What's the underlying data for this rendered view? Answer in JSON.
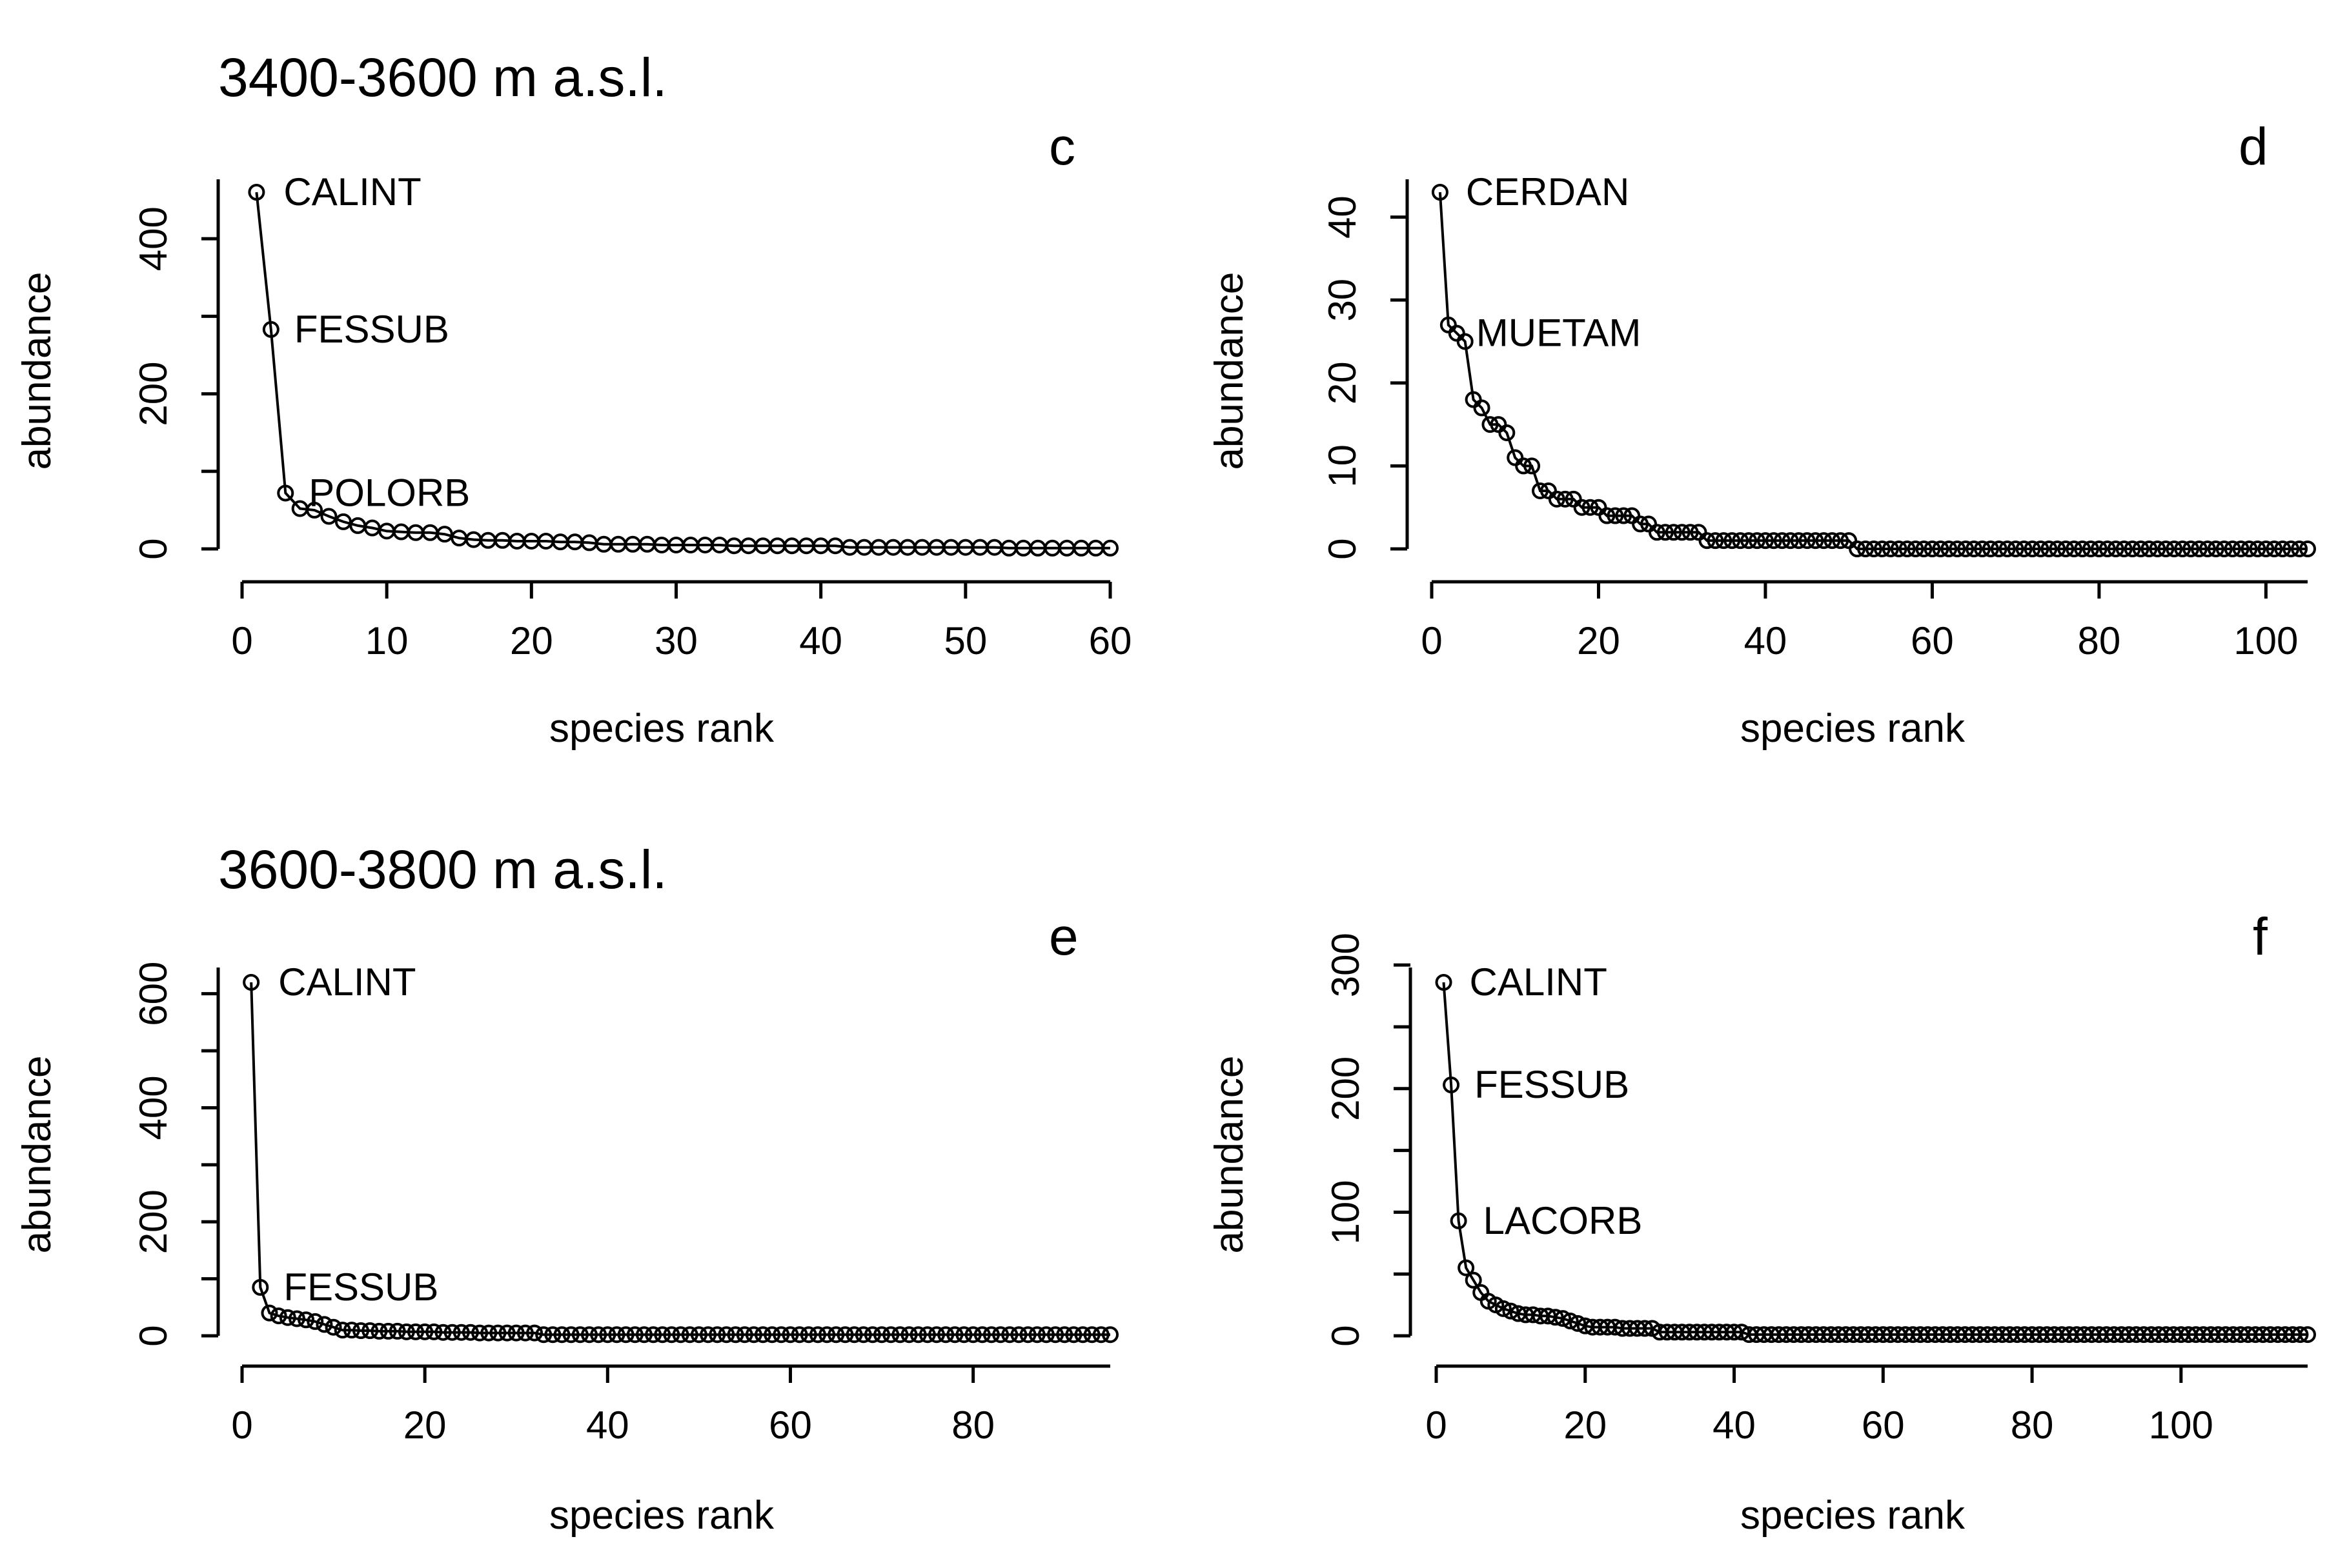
{
  "row_titles": [
    "3400-3600 m a.s.l.",
    "3600-3800 m a.s.l."
  ],
  "chart_data": [
    {
      "type": "line",
      "panel_label": "c",
      "xlabel": "species rank",
      "ylabel": "abundance",
      "xlim": [
        0,
        60
      ],
      "ylim": [
        0,
        460
      ],
      "xticks": [
        0,
        10,
        20,
        30,
        40,
        50,
        60
      ],
      "yticks": [
        0,
        200,
        400
      ],
      "minor_yticks": [
        100,
        300
      ],
      "x": [
        1,
        2,
        3,
        4,
        5,
        6,
        7,
        8,
        9,
        10,
        11,
        12,
        13,
        14,
        15,
        16,
        17,
        18,
        19,
        20,
        21,
        22,
        23,
        24,
        25,
        26,
        27,
        28,
        29,
        30,
        31,
        32,
        33,
        34,
        35,
        36,
        37,
        38,
        39,
        40,
        41,
        42,
        43,
        44,
        45,
        46,
        47,
        48,
        49,
        50,
        51,
        52,
        53,
        54,
        55,
        56,
        57,
        58,
        59,
        60
      ],
      "values": [
        460,
        283,
        72,
        52,
        50,
        42,
        35,
        30,
        27,
        23,
        22,
        21,
        21,
        19,
        14,
        12,
        11,
        11,
        10,
        10,
        10,
        9,
        9,
        8,
        6,
        6,
        6,
        6,
        5,
        5,
        5,
        5,
        5,
        4,
        4,
        4,
        4,
        4,
        4,
        4,
        4,
        2,
        2,
        2,
        2,
        2,
        2,
        2,
        2,
        2,
        2,
        2,
        1,
        1,
        1,
        1,
        1,
        1,
        1,
        1
      ],
      "annotations": [
        {
          "text": "CALINT",
          "rank": 1
        },
        {
          "text": "FESSUB",
          "rank": 2
        },
        {
          "text": "POLORB",
          "rank": 3
        }
      ]
    },
    {
      "type": "line",
      "panel_label": "d",
      "xlabel": "species rank",
      "ylabel": "abundance",
      "xlim": [
        0,
        105
      ],
      "ylim": [
        0,
        43
      ],
      "xticks": [
        0,
        20,
        40,
        60,
        80,
        100
      ],
      "yticks": [
        0,
        10,
        20,
        30,
        40
      ],
      "x": [
        1,
        2,
        3,
        4,
        5,
        6,
        7,
        8,
        9,
        10,
        11,
        12,
        13,
        14,
        15,
        16,
        17,
        18,
        19,
        20,
        21,
        22,
        23,
        24,
        25,
        26,
        27,
        28,
        29,
        30,
        31,
        32,
        33,
        34,
        35,
        36,
        37,
        38,
        39,
        40,
        41,
        42,
        43,
        44,
        45,
        46,
        47,
        48,
        49,
        50,
        51,
        52,
        53,
        54,
        55,
        56,
        57,
        58,
        59,
        60,
        61,
        62,
        63,
        64,
        65,
        66,
        67,
        68,
        69,
        70,
        71,
        72,
        73,
        74,
        75,
        76,
        77,
        78,
        79,
        80,
        81,
        82,
        83,
        84,
        85,
        86,
        87,
        88,
        89,
        90,
        91,
        92,
        93,
        94,
        95,
        96,
        97,
        98,
        99,
        100,
        101,
        102,
        103,
        104,
        105
      ],
      "values": [
        43,
        27,
        26,
        25,
        18,
        17,
        15,
        15,
        14,
        11,
        10,
        10,
        7,
        7,
        6,
        6,
        6,
        5,
        5,
        5,
        4,
        4,
        4,
        4,
        3,
        3,
        2,
        2,
        2,
        2,
        2,
        2,
        1,
        1,
        1,
        1,
        1,
        1,
        1,
        1,
        1,
        1,
        1,
        1,
        1,
        1,
        1,
        1,
        1,
        1,
        0,
        0,
        0,
        0,
        0,
        0,
        0,
        0,
        0,
        0,
        0,
        0,
        0,
        0,
        0,
        0,
        0,
        0,
        0,
        0,
        0,
        0,
        0,
        0,
        0,
        0,
        0,
        0,
        0,
        0,
        0,
        0,
        0,
        0,
        0,
        0,
        0,
        0,
        0,
        0,
        0,
        0,
        0,
        0,
        0,
        0,
        0,
        0,
        0,
        0,
        0,
        0,
        0,
        0,
        0
      ],
      "annotations": [
        {
          "text": "CERDAN",
          "rank": 1
        },
        {
          "text": "MUETAM",
          "rank": 3
        }
      ]
    },
    {
      "type": "line",
      "panel_label": "e",
      "xlabel": "species rank",
      "ylabel": "abundance",
      "xlim": [
        0,
        95
      ],
      "ylim": [
        0,
        620
      ],
      "xticks": [
        0,
        20,
        40,
        60,
        80
      ],
      "yticks": [
        0,
        200,
        400,
        600
      ],
      "minor_yticks": [
        100,
        300,
        500
      ],
      "x": [
        1,
        2,
        3,
        4,
        5,
        6,
        7,
        8,
        9,
        10,
        11,
        12,
        13,
        14,
        15,
        16,
        17,
        18,
        19,
        20,
        21,
        22,
        23,
        24,
        25,
        26,
        27,
        28,
        29,
        30,
        31,
        32,
        33,
        34,
        35,
        36,
        37,
        38,
        39,
        40,
        41,
        42,
        43,
        44,
        45,
        46,
        47,
        48,
        49,
        50,
        51,
        52,
        53,
        54,
        55,
        56,
        57,
        58,
        59,
        60,
        61,
        62,
        63,
        64,
        65,
        66,
        67,
        68,
        69,
        70,
        71,
        72,
        73,
        74,
        75,
        76,
        77,
        78,
        79,
        80,
        81,
        82,
        83,
        84,
        85,
        86,
        87,
        88,
        89,
        90,
        91,
        92,
        93,
        94,
        95
      ],
      "values": [
        620,
        85,
        40,
        35,
        32,
        30,
        28,
        25,
        20,
        15,
        10,
        10,
        9,
        9,
        8,
        8,
        8,
        7,
        7,
        7,
        7,
        6,
        6,
        6,
        6,
        5,
        5,
        5,
        5,
        5,
        5,
        5,
        2,
        2,
        2,
        2,
        2,
        2,
        2,
        2,
        2,
        2,
        2,
        2,
        2,
        2,
        2,
        2,
        2,
        2,
        2,
        2,
        2,
        2,
        2,
        2,
        2,
        2,
        2,
        2,
        2,
        2,
        2,
        2,
        2,
        2,
        2,
        2,
        2,
        2,
        2,
        2,
        2,
        2,
        2,
        2,
        2,
        2,
        2,
        2,
        2,
        2,
        2,
        2,
        2,
        2,
        2,
        2,
        2,
        2,
        2,
        2,
        2,
        2,
        2
      ],
      "annotations": [
        {
          "text": "CALINT",
          "rank": 1
        },
        {
          "text": "FESSUB",
          "rank": 2
        }
      ]
    },
    {
      "type": "line",
      "panel_label": "f",
      "xlabel": "species rank",
      "ylabel": "abundance",
      "xlim": [
        0,
        117
      ],
      "ylim": [
        0,
        286
      ],
      "xticks": [
        0,
        20,
        40,
        60,
        80,
        100
      ],
      "yticks": [
        0,
        100,
        200,
        300
      ],
      "minor_yticks": [
        50,
        150,
        250
      ],
      "x": [
        1,
        2,
        3,
        4,
        5,
        6,
        7,
        8,
        9,
        10,
        11,
        12,
        13,
        14,
        15,
        16,
        17,
        18,
        19,
        20,
        21,
        22,
        23,
        24,
        25,
        26,
        27,
        28,
        29,
        30,
        31,
        32,
        33,
        34,
        35,
        36,
        37,
        38,
        39,
        40,
        41,
        42,
        43,
        44,
        45,
        46,
        47,
        48,
        49,
        50,
        51,
        52,
        53,
        54,
        55,
        56,
        57,
        58,
        59,
        60,
        61,
        62,
        63,
        64,
        65,
        66,
        67,
        68,
        69,
        70,
        71,
        72,
        73,
        74,
        75,
        76,
        77,
        78,
        79,
        80,
        81,
        82,
        83,
        84,
        85,
        86,
        87,
        88,
        89,
        90,
        91,
        92,
        93,
        94,
        95,
        96,
        97,
        98,
        99,
        100,
        101,
        102,
        103,
        104,
        105,
        106,
        107,
        108,
        109,
        110,
        111,
        112,
        113,
        114,
        115,
        116,
        117
      ],
      "values": [
        286,
        203,
        93,
        55,
        45,
        35,
        28,
        25,
        22,
        20,
        18,
        17,
        17,
        16,
        16,
        15,
        14,
        12,
        10,
        8,
        7,
        7,
        7,
        7,
        6,
        6,
        6,
        6,
        6,
        3,
        3,
        3,
        3,
        3,
        3,
        3,
        3,
        3,
        3,
        3,
        3,
        1,
        1,
        1,
        1,
        1,
        1,
        1,
        1,
        1,
        1,
        1,
        1,
        1,
        1,
        1,
        1,
        1,
        1,
        1,
        1,
        1,
        1,
        1,
        1,
        1,
        1,
        1,
        1,
        1,
        1,
        1,
        1,
        1,
        1,
        1,
        1,
        1,
        1,
        1,
        1,
        1,
        1,
        1,
        1,
        1,
        1,
        1,
        1,
        1,
        1,
        1,
        1,
        1,
        1,
        1,
        1,
        1,
        1,
        1,
        1,
        1,
        1,
        1,
        1,
        1,
        1,
        1,
        1,
        1,
        1,
        1,
        1,
        1,
        1,
        1,
        1
      ],
      "annotations": [
        {
          "text": "CALINT",
          "rank": 1
        },
        {
          "text": "FESSUB",
          "rank": 2
        },
        {
          "text": "LACORB",
          "rank": 3
        }
      ]
    }
  ]
}
